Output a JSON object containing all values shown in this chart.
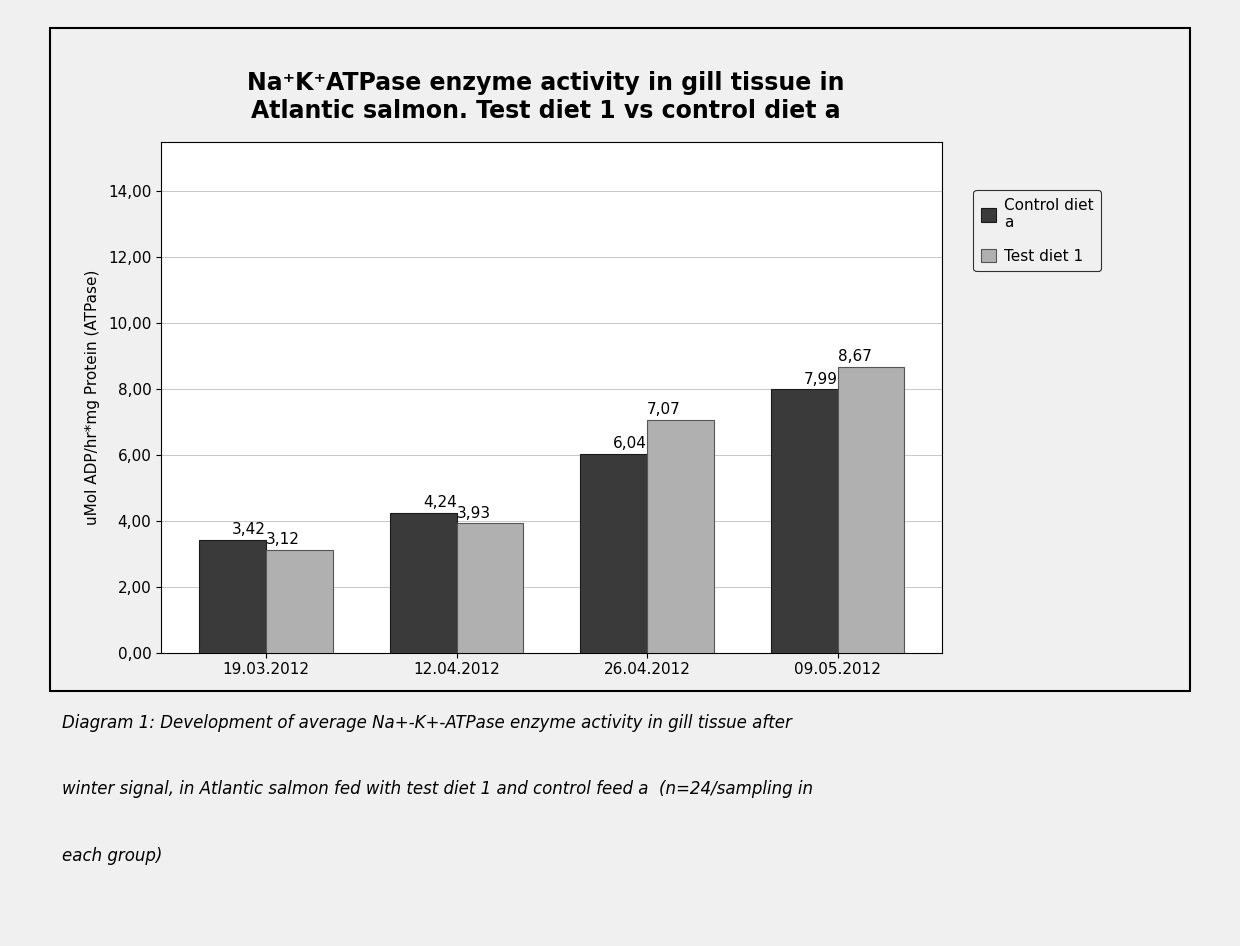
{
  "title_line1": "Na⁺K⁺ATPase enzyme activity in gill tissue in",
  "title_line2": "Atlantic salmon. Test diet 1 vs control diet a",
  "categories": [
    "19.03.2012",
    "12.04.2012",
    "26.04.2012",
    "09.05.2012"
  ],
  "control_values": [
    3.42,
    4.24,
    6.04,
    7.99
  ],
  "test_values": [
    3.12,
    3.93,
    7.07,
    8.67
  ],
  "control_labels": [
    "3,42",
    "4,24",
    "6,04",
    "7,99"
  ],
  "test_labels": [
    "3,12",
    "3,93",
    "7,07",
    "8,67"
  ],
  "control_color": "#3a3a3a",
  "test_color": "#b0b0b0",
  "ylabel": "uMol ADP/hr*mg Protein (ATPase)",
  "ylim": [
    0,
    15.5
  ],
  "yticks": [
    0.0,
    2.0,
    4.0,
    6.0,
    8.0,
    10.0,
    12.0,
    14.0
  ],
  "ytick_labels": [
    "0,00",
    "2,00",
    "4,00",
    "6,00",
    "8,00",
    "10,00",
    "12,00",
    "14,00"
  ],
  "legend_control": "Control diet\na",
  "legend_test": "Test diet 1",
  "caption_line1": "Diagram 1: Development of average Na+-K+-ATPase enzyme activity in gill tissue after",
  "caption_line2": "winter signal, in Atlantic salmon fed with test diet 1 and control feed a  (n=24/sampling in",
  "caption_line3": "each group)",
  "bg_color": "#f0f0f0",
  "plot_bg_color": "#ffffff",
  "bar_width": 0.35,
  "title_fontsize": 17,
  "label_fontsize": 11,
  "tick_fontsize": 11,
  "value_fontsize": 11
}
